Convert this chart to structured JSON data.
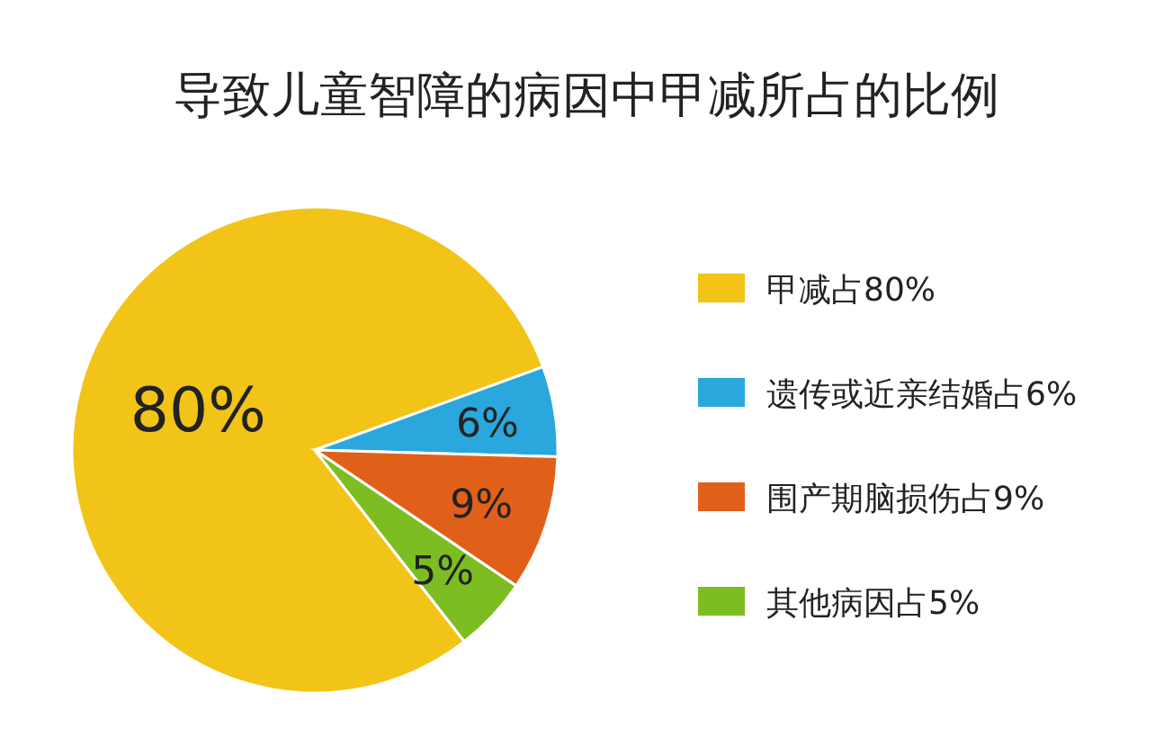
{
  "chart_data": {
    "type": "pie",
    "title": "导致儿童智障的病因中甲减所占的比例",
    "categories": [
      "甲减占80%",
      "遗传或近亲结婚占6%",
      "围产期脑损伤占9%",
      "其他病因占5%"
    ],
    "values": [
      80,
      6,
      9,
      5
    ],
    "value_labels": [
      "80%",
      "6%",
      "9%",
      "5%"
    ],
    "colors": [
      "#f2c418",
      "#2aa7dc",
      "#e0601a",
      "#7cbd22"
    ],
    "legend": "right"
  }
}
